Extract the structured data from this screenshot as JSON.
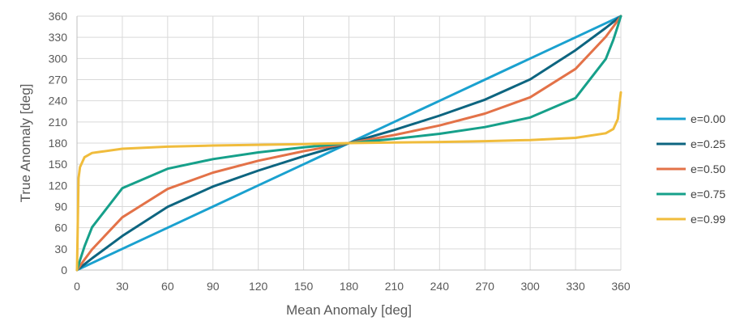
{
  "chart_data": {
    "type": "line",
    "xlabel": "Mean Anomaly [deg]",
    "ylabel": "True Anomaly [deg]",
    "xlim": [
      0,
      360
    ],
    "ylim": [
      0,
      360
    ],
    "x_ticks": [
      0,
      30,
      60,
      90,
      120,
      150,
      180,
      210,
      240,
      270,
      300,
      330,
      360
    ],
    "y_ticks": [
      0,
      30,
      60,
      90,
      120,
      150,
      180,
      210,
      240,
      270,
      300,
      330,
      360
    ],
    "grid": true,
    "legend_position": "right",
    "x": [
      0,
      1,
      2,
      5,
      10,
      30,
      60,
      90,
      120,
      150,
      180,
      210,
      240,
      270,
      300,
      330,
      350,
      355,
      358,
      359,
      360
    ],
    "series": [
      {
        "name": "e=0.00",
        "color": "#1aa1cf",
        "values": [
          0,
          1,
          2,
          5,
          10,
          30,
          60,
          90,
          120,
          150,
          180,
          210,
          240,
          270,
          300,
          330,
          350,
          355,
          358,
          359,
          360
        ]
      },
      {
        "name": "e=0.25",
        "color": "#0d6580",
        "values": [
          0,
          1.7,
          3.3,
          8.3,
          16.6,
          48.3,
          89.5,
          118.4,
          141.0,
          161.4,
          180,
          198.6,
          219.0,
          241.6,
          270.5,
          311.7,
          343.4,
          351.7,
          356.7,
          358.3,
          360
        ]
      },
      {
        "name": "e=0.50",
        "color": "#e37248",
        "values": [
          0,
          3.0,
          6.0,
          14.9,
          29.2,
          74.8,
          115.0,
          138.2,
          155.0,
          168.5,
          180,
          191.5,
          205.0,
          221.8,
          245.0,
          285.2,
          330.8,
          345.1,
          354.0,
          357.0,
          360
        ]
      },
      {
        "name": "e=0.75",
        "color": "#16a08a",
        "values": [
          0,
          7.0,
          13.9,
          33.6,
          60.6,
          116.0,
          143.6,
          157.3,
          166.8,
          174.0,
          180,
          186.0,
          193.2,
          202.7,
          216.4,
          244.0,
          299.4,
          326.4,
          346.1,
          353.0,
          360
        ]
      },
      {
        "name": "e=0.99",
        "color": "#f0bc3c",
        "values": [
          0,
          130.0,
          146.0,
          160.0,
          166.0,
          172.0,
          175.0,
          176.6,
          177.6,
          178.6,
          180,
          180.8,
          181.6,
          182.8,
          184.4,
          187.5,
          194.0,
          200.0,
          214.0,
          234.0,
          252
        ]
      }
    ]
  }
}
